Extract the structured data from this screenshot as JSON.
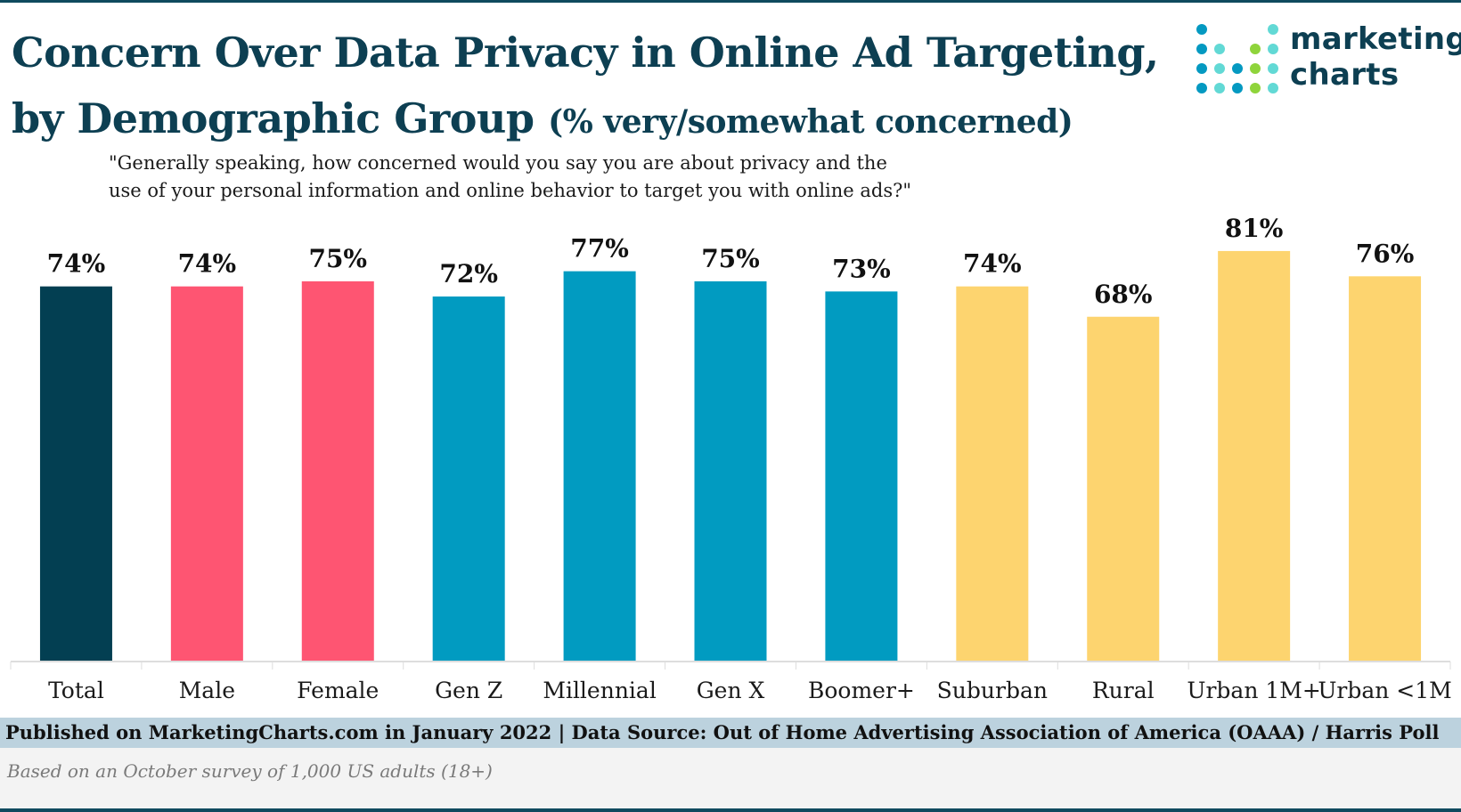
{
  "header": {
    "title_line1": "Concern Over Data Privacy in Online Ad Targeting,",
    "title_line2": "by Demographic Group",
    "title_suffix": "(% very/somewhat concerned)",
    "question_line1": "\"Generally speaking, how concerned would you say you are about privacy and the",
    "question_line2": "use of your personal information and online behavior to target you with online ads?\""
  },
  "logo": {
    "line1": "marketing",
    "line2": "charts",
    "icon": "dot-matrix-logo-icon"
  },
  "colors": {
    "total": "#033f52",
    "gender": "#fe5572",
    "generation": "#019bc1",
    "location": "#fdd46f",
    "title": "#0d3f52"
  },
  "chart_data": {
    "type": "bar",
    "title": "Concern Over Data Privacy in Online Ad Targeting, by Demographic Group (% very/somewhat concerned)",
    "xlabel": "",
    "ylabel": "",
    "ylim": [
      0,
      100
    ],
    "grid": false,
    "legend": "none",
    "value_suffix": "%",
    "categories": [
      "Total",
      "Male",
      "Female",
      "Gen Z",
      "Millennial",
      "Gen X",
      "Boomer+",
      "Suburban",
      "Rural",
      "Urban 1M+",
      "Urban <1M"
    ],
    "values": [
      74,
      74,
      75,
      72,
      77,
      75,
      73,
      74,
      68,
      81,
      76
    ],
    "groups": [
      "total",
      "gender",
      "gender",
      "generation",
      "generation",
      "generation",
      "generation",
      "location",
      "location",
      "location",
      "location"
    ]
  },
  "footer": {
    "source": "Published on MarketingCharts.com in January 2022 | Data Source: Out of Home Advertising Association of America (OAAA) / Harris Poll",
    "note": "Based on an October survey of 1,000 US adults (18+)"
  }
}
